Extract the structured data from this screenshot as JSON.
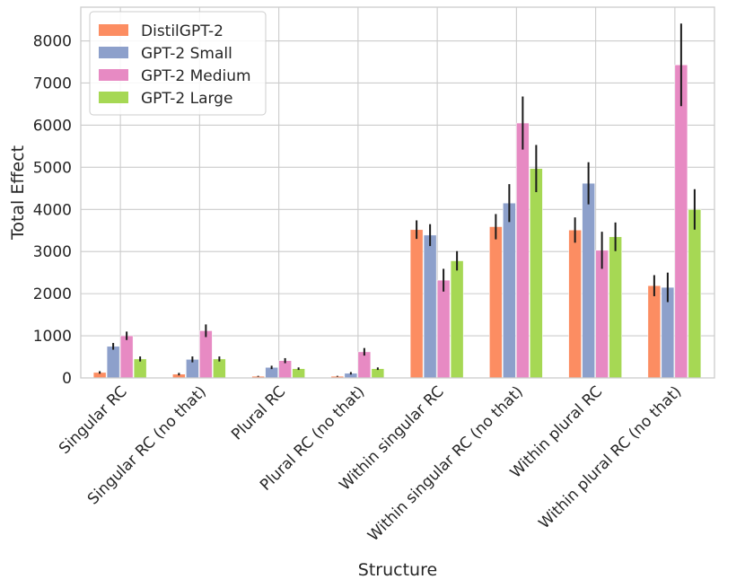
{
  "chart_data": {
    "type": "bar",
    "title": "",
    "xlabel": "Structure",
    "ylabel": "Total Effect",
    "ylim": [
      0,
      8800
    ],
    "yticks": [
      0,
      1000,
      2000,
      3000,
      4000,
      5000,
      6000,
      7000,
      8000
    ],
    "grid": true,
    "legend_position": "top-left",
    "categories": [
      "Singular RC",
      "Singular RC (no that)",
      "Plural RC",
      "Plural RC (no that)",
      "Within singular RC",
      "Within singular RC (no that)",
      "Within plural RC",
      "Within plural RC (no that)"
    ],
    "series": [
      {
        "name": "DistilGPT-2",
        "color": "#fc8d62",
        "values": [
          130,
          90,
          40,
          40,
          3520,
          3590,
          3510,
          2190
        ],
        "errors": [
          30,
          30,
          10,
          10,
          220,
          300,
          300,
          250
        ]
      },
      {
        "name": "GPT-2 Small",
        "color": "#8da0cb",
        "values": [
          750,
          440,
          250,
          110,
          3390,
          4150,
          4620,
          2150
        ],
        "errors": [
          80,
          70,
          40,
          30,
          260,
          450,
          500,
          350
        ]
      },
      {
        "name": "GPT-2 Medium",
        "color": "#e78ac3",
        "values": [
          1000,
          1120,
          410,
          620,
          2320,
          6050,
          3030,
          7430
        ],
        "errors": [
          100,
          150,
          60,
          90,
          270,
          630,
          440,
          980
        ]
      },
      {
        "name": "GPT-2 Large",
        "color": "#a6d854",
        "values": [
          450,
          450,
          220,
          220,
          2780,
          4970,
          3350,
          4000
        ],
        "errors": [
          60,
          60,
          30,
          30,
          230,
          560,
          340,
          480
        ]
      }
    ]
  }
}
